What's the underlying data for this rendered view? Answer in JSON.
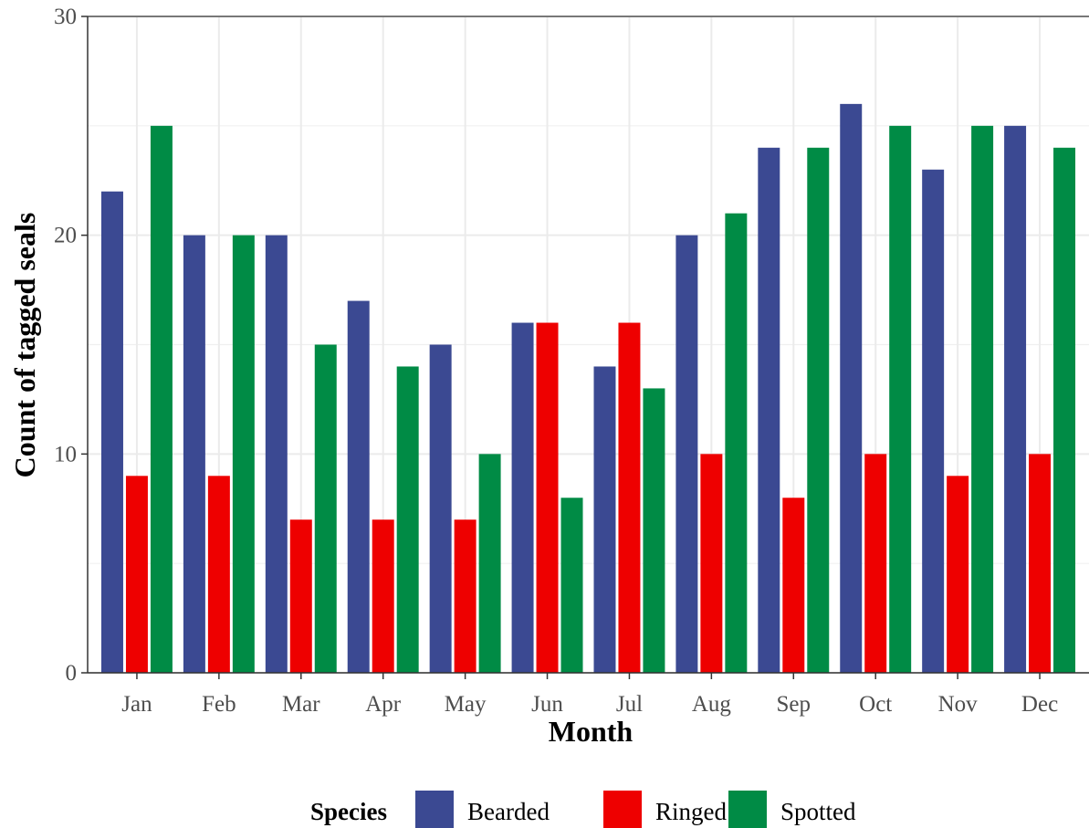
{
  "chart_data": {
    "type": "bar",
    "xlabel": "Month",
    "ylabel": "Count of tagged seals",
    "ylim": [
      0,
      30
    ],
    "yticks": [
      0,
      10,
      20,
      30
    ],
    "grid": true,
    "legend": {
      "title": "Species",
      "position": "bottom"
    },
    "categories": [
      "Jan",
      "Feb",
      "Mar",
      "Apr",
      "May",
      "Jun",
      "Jul",
      "Aug",
      "Sep",
      "Oct",
      "Nov",
      "Dec"
    ],
    "series": [
      {
        "name": "Bearded",
        "color": "#3B4992",
        "values": [
          22,
          20,
          20,
          17,
          15,
          16,
          14,
          20,
          24,
          26,
          23,
          25
        ]
      },
      {
        "name": "Ringed",
        "color": "#EE0000",
        "values": [
          9,
          9,
          7,
          7,
          7,
          16,
          16,
          10,
          8,
          10,
          9,
          10
        ]
      },
      {
        "name": "Spotted",
        "color": "#008B45",
        "values": [
          25,
          20,
          15,
          14,
          10,
          8,
          13,
          21,
          24,
          25,
          25,
          24
        ]
      }
    ]
  }
}
